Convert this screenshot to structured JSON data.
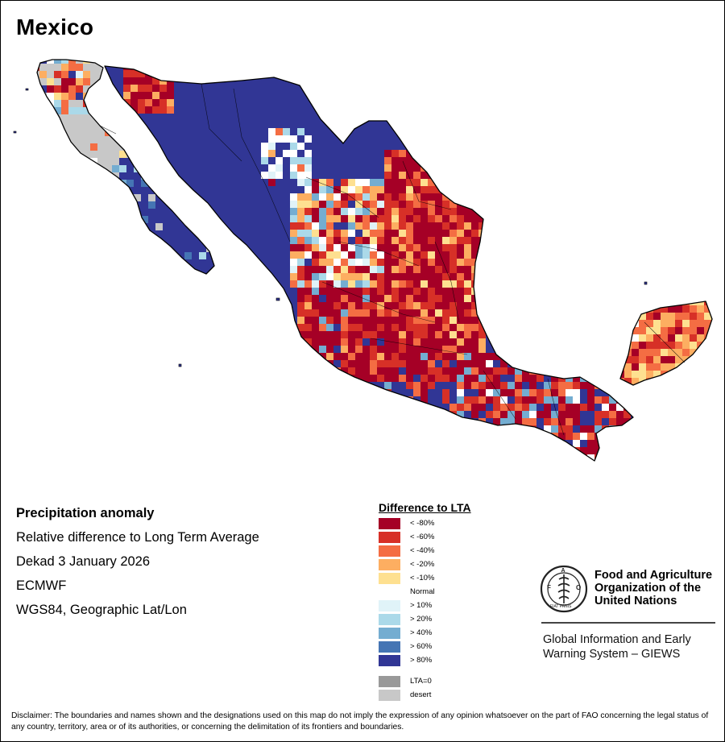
{
  "map": {
    "title": "Mexico",
    "region_label": "Mexico"
  },
  "info": {
    "title": "Precipitation anomaly",
    "description": "Relative difference to Long Term Average",
    "period": "Dekad 3 January 2026",
    "source": "ECMWF",
    "projection": "WGS84, Geographic Lat/Lon"
  },
  "legend": {
    "title": "Difference to LTA",
    "classes": [
      {
        "label": "< -80%",
        "color": "#a50026"
      },
      {
        "label": "< -60%",
        "color": "#d73027"
      },
      {
        "label": "< -40%",
        "color": "#f46d43"
      },
      {
        "label": "< -20%",
        "color": "#fdae61"
      },
      {
        "label": "< -10%",
        "color": "#fee090"
      },
      {
        "label": "Normal",
        "color": "#ffffff"
      },
      {
        "label": "> 10%",
        "color": "#e0f3f8"
      },
      {
        "label": "> 20%",
        "color": "#abd9e9"
      },
      {
        "label": "> 40%",
        "color": "#74add1"
      },
      {
        "label": "> 60%",
        "color": "#4575b4"
      },
      {
        "label": "> 80%",
        "color": "#313695"
      }
    ],
    "extra": [
      {
        "label": "LTA=0",
        "color": "#999999"
      },
      {
        "label": "desert",
        "color": "#c8c8c8"
      }
    ]
  },
  "organization": {
    "name_line1": "Food and Agriculture",
    "name_line2": "Organization of the",
    "name_line3": "United Nations",
    "logo_text": "FAO FIAT PANIS",
    "system_line1": "Global Information and Early",
    "system_line2": "Warning System – GIEWS"
  },
  "disclaimer": "Disclaimer: The boundaries and names shown and the designations used on this map do not imply the expression of any opinion whatsoever on the part of FAO concerning the legal status of any country, territory, area or of its authorities, or concerning the delimitation of its frontiers and boundaries."
}
